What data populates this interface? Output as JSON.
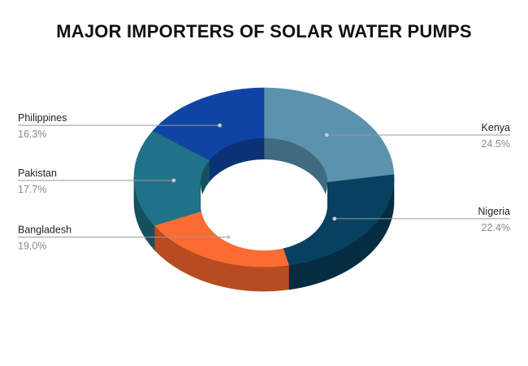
{
  "chart_data": {
    "type": "pie",
    "variant": "3d-donut",
    "title": "MAJOR IMPORTERS OF SOLAR WATER PUMPS",
    "series": [
      {
        "label": "Kenya",
        "value": 24.5,
        "value_label": "24.5%",
        "color": "#5b92ae",
        "side_color": "#3f6a80",
        "label_side": "right"
      },
      {
        "label": "Nigeria",
        "value": 22.4,
        "value_label": "22.4%",
        "color": "#08415f",
        "side_color": "#052c40",
        "label_side": "right"
      },
      {
        "label": "Bangladesh",
        "value": 19.0,
        "value_label": "19.0%",
        "color": "#fc6c32",
        "side_color": "#b74b21",
        "label_side": "left"
      },
      {
        "label": "Pakistan",
        "value": 17.7,
        "value_label": "17.7%",
        "color": "#1f7287",
        "side_color": "#15505f",
        "label_side": "left"
      },
      {
        "label": "Philippines",
        "value": 16.3,
        "value_label": "16.3%",
        "color": "#0e45a4",
        "side_color": "#0a3274",
        "label_side": "left"
      }
    ],
    "start_angle": "12 o'clock",
    "direction": "clockwise",
    "legend": "none (leader-line labels)"
  }
}
